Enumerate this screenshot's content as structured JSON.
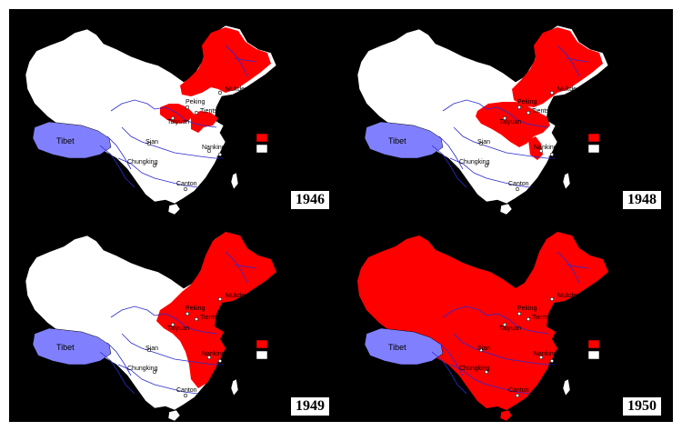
{
  "colors": {
    "background": "#000000",
    "communist": "#ff0000",
    "nationalist": "#ffffff",
    "tibet": "#8080ff",
    "river": "#2a2ad0"
  },
  "tibet_label": "Tibet",
  "cities": [
    "Mukden",
    "Peking",
    "Tientsin",
    "Taiyuan",
    "Sian",
    "Nanking",
    "Shanghai",
    "Chungking",
    "Canton"
  ],
  "panels": [
    {
      "year": "1946",
      "stage": 1
    },
    {
      "year": "1948",
      "stage": 2
    },
    {
      "year": "1949",
      "stage": 3
    },
    {
      "year": "1950",
      "stage": 4
    }
  ],
  "legend": {
    "communist_color": "#ff0000",
    "nationalist_color": "#ffffff"
  }
}
